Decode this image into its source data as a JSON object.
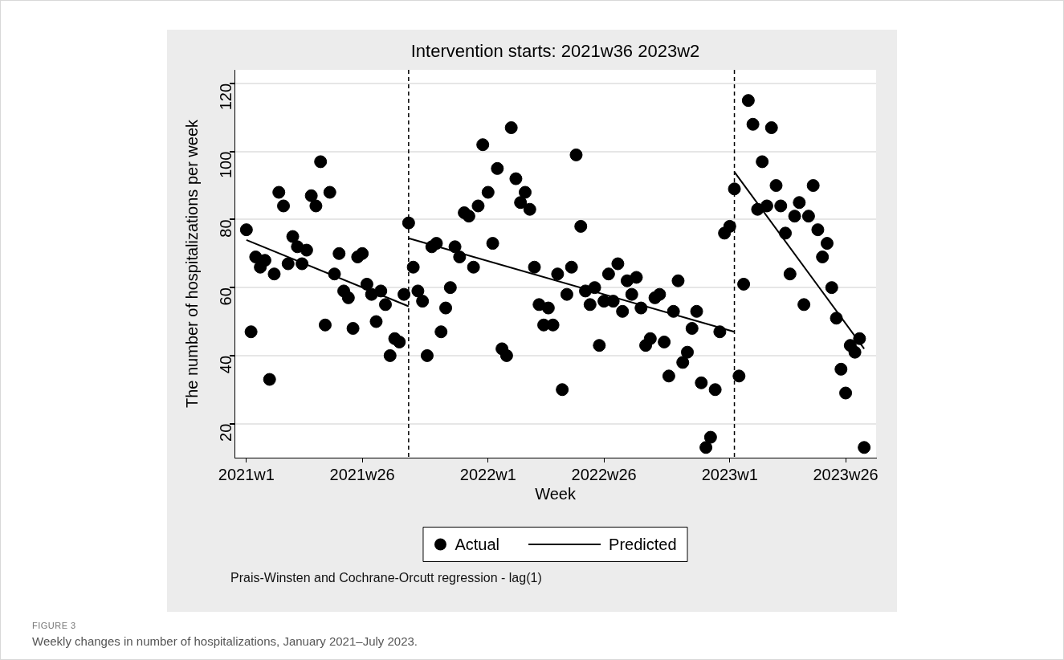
{
  "chart_data": {
    "type": "scatter",
    "title": "Intervention starts: 2021w36 2023w2",
    "xlabel": "Week",
    "ylabel": "The number of hospitalizations per week",
    "x": [
      "2021-01-01",
      "2021-01-08",
      "2021-01-15",
      "2021-01-22",
      "2021-01-29",
      "2021-02-05",
      "2021-02-12",
      "2021-02-19",
      "2021-02-26",
      "2021-03-05",
      "2021-03-12",
      "2021-03-19",
      "2021-03-26",
      "2021-04-02",
      "2021-04-09",
      "2021-04-16",
      "2021-04-23",
      "2021-04-30",
      "2021-05-07",
      "2021-05-14",
      "2021-05-21",
      "2021-05-28",
      "2021-06-04",
      "2021-06-11",
      "2021-06-18",
      "2021-06-25",
      "2021-07-02",
      "2021-07-09",
      "2021-07-16",
      "2021-07-23",
      "2021-07-30",
      "2021-08-06",
      "2021-08-13",
      "2021-08-20",
      "2021-08-27",
      "2021-09-03",
      "2021-09-10",
      "2021-09-17",
      "2021-09-24",
      "2021-10-01",
      "2021-10-08",
      "2021-10-15",
      "2021-10-22",
      "2021-10-29",
      "2021-11-05",
      "2021-11-12",
      "2021-11-19",
      "2021-11-26",
      "2021-12-03",
      "2021-12-10",
      "2021-12-17",
      "2021-12-24",
      "2022-01-01",
      "2022-01-08",
      "2022-01-15",
      "2022-01-22",
      "2022-01-29",
      "2022-02-05",
      "2022-02-12",
      "2022-02-19",
      "2022-02-26",
      "2022-03-05",
      "2022-03-12",
      "2022-03-19",
      "2022-03-26",
      "2022-04-02",
      "2022-04-09",
      "2022-04-16",
      "2022-04-23",
      "2022-04-30",
      "2022-05-07",
      "2022-05-14",
      "2022-05-21",
      "2022-05-28",
      "2022-06-04",
      "2022-06-11",
      "2022-06-18",
      "2022-06-25",
      "2022-07-02",
      "2022-07-09",
      "2022-07-16",
      "2022-07-23",
      "2022-07-30",
      "2022-08-06",
      "2022-08-13",
      "2022-08-20",
      "2022-08-27",
      "2022-09-03",
      "2022-09-10",
      "2022-09-17",
      "2022-09-24",
      "2022-10-01",
      "2022-10-08",
      "2022-10-15",
      "2022-10-22",
      "2022-10-29",
      "2022-11-05",
      "2022-11-12",
      "2022-11-19",
      "2022-11-26",
      "2022-12-03",
      "2022-12-10",
      "2022-12-17",
      "2022-12-24",
      "2023-01-01",
      "2023-01-08",
      "2023-01-15",
      "2023-01-22",
      "2023-01-29",
      "2023-02-05",
      "2023-02-12",
      "2023-02-19",
      "2023-02-26",
      "2023-03-05",
      "2023-03-12",
      "2023-03-19",
      "2023-03-26",
      "2023-04-02",
      "2023-04-09",
      "2023-04-16",
      "2023-04-23",
      "2023-04-30",
      "2023-05-07",
      "2023-05-14",
      "2023-05-21",
      "2023-05-28",
      "2023-06-04",
      "2023-06-11",
      "2023-06-18",
      "2023-06-25",
      "2023-07-02",
      "2023-07-09",
      "2023-07-16",
      "2023-07-23"
    ],
    "series": [
      {
        "name": "Actual",
        "color": "#000000",
        "marker": "circle",
        "values": [
          77,
          47,
          69,
          66,
          68,
          33,
          64,
          88,
          84,
          67,
          75,
          72,
          67,
          71,
          87,
          84,
          97,
          49,
          88,
          64,
          70,
          59,
          57,
          48,
          69,
          70,
          61,
          58,
          50,
          59,
          55,
          40,
          45,
          44,
          58,
          79,
          66,
          59,
          56,
          40,
          72,
          73,
          47,
          54,
          60,
          72,
          69,
          82,
          81,
          66,
          84,
          102,
          88,
          73,
          95,
          42,
          40,
          107,
          92,
          85,
          88,
          83,
          66,
          55,
          49,
          54,
          49,
          64,
          30,
          58,
          66,
          99,
          78,
          59,
          55,
          60,
          43,
          56,
          64,
          56,
          67,
          53,
          62,
          58,
          63,
          54,
          43,
          45,
          57,
          58,
          44,
          34,
          53,
          62,
          38,
          41,
          48,
          53,
          32,
          13,
          16,
          30,
          47,
          76,
          78,
          89,
          34,
          61,
          115,
          108,
          83,
          97,
          84,
          107,
          90,
          84,
          76,
          64,
          81,
          85,
          55,
          81,
          90,
          77,
          69,
          73,
          60,
          51,
          36,
          29,
          43,
          41,
          45,
          13
        ]
      },
      {
        "name": "Predicted",
        "type": "line",
        "color": "#000000",
        "marker": "none",
        "line_style": "solid",
        "x": [
          "2021-01-01",
          "2021-09-03"
        ],
        "values": [
          74,
          54.5
        ]
      },
      {
        "type": "line",
        "color": "#000000",
        "marker": "none",
        "line_style": "solid",
        "x": [
          "2021-09-03",
          "2023-01-08"
        ],
        "values": [
          74.5,
          47
        ]
      },
      {
        "type": "line",
        "color": "#000000",
        "marker": "none",
        "line_style": "solid",
        "x": [
          "2023-01-08",
          "2023-07-23"
        ],
        "values": [
          94,
          42
        ]
      }
    ],
    "xlim": [
      "2020-12-14",
      "2023-08-10"
    ],
    "xticks": [
      {
        "value": "2021-01-01",
        "label": "2021w1"
      },
      {
        "value": "2021-06-25",
        "label": "2021w26"
      },
      {
        "value": "2022-01-01",
        "label": "2022w1"
      },
      {
        "value": "2022-06-25",
        "label": "2022w26"
      },
      {
        "value": "2023-01-01",
        "label": "2023w1"
      },
      {
        "value": "2023-06-25",
        "label": "2023w26"
      }
    ],
    "ylim": [
      10,
      124
    ],
    "yticks": [
      20,
      40,
      60,
      80,
      100,
      120
    ],
    "grid": "y",
    "legend": "bottom",
    "ref_lines": [
      {
        "axis": "x",
        "value": "2021-09-03",
        "line_style": "dashed",
        "color": "#000000"
      },
      {
        "axis": "x",
        "value": "2023-01-08",
        "line_style": "dashed",
        "color": "#000000"
      }
    ],
    "annotations": [
      "Prais-Winsten and Cochrane-Orcutt regression - lag(1)",
      "FIGURE 3",
      "Weekly changes in number of hospitalizations, January 2021–July 2023."
    ]
  }
}
